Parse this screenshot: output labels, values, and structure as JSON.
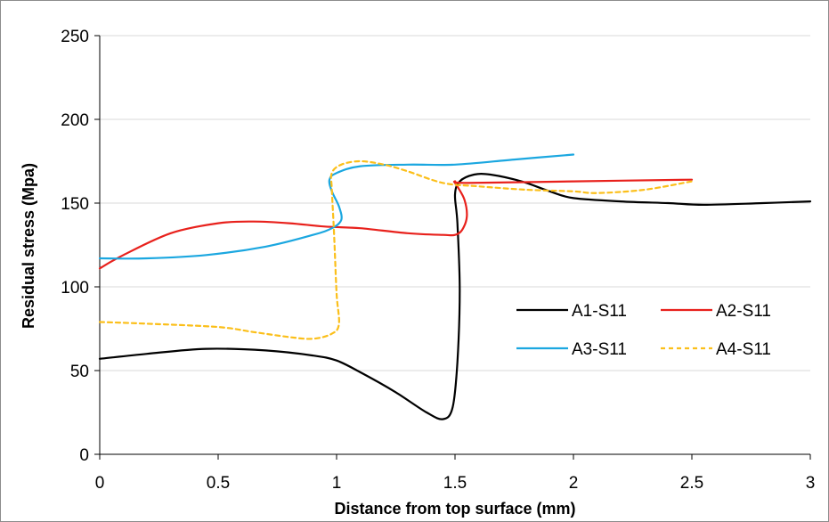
{
  "chart_data": {
    "type": "line",
    "xlabel": "Distance from top surface (mm)",
    "ylabel": "Residual stress (Mpa)",
    "xlim": [
      0,
      3
    ],
    "ylim": [
      0,
      250
    ],
    "x_ticks": [
      "0",
      "0.5",
      "1",
      "1.5",
      "2",
      "2.5",
      "3"
    ],
    "y_ticks": [
      "0",
      "50",
      "100",
      "150",
      "200",
      "250"
    ],
    "grid": "horizontal",
    "legend_position": "right",
    "series": [
      {
        "name": "A1-S11",
        "color": "#000000",
        "dash": "solid",
        "points": [
          [
            0,
            57
          ],
          [
            0.2,
            60
          ],
          [
            0.45,
            63
          ],
          [
            0.7,
            62
          ],
          [
            0.9,
            59
          ],
          [
            1.0,
            56
          ],
          [
            1.1,
            49
          ],
          [
            1.25,
            37
          ],
          [
            1.38,
            25
          ],
          [
            1.45,
            21
          ],
          [
            1.49,
            28
          ],
          [
            1.51,
            55
          ],
          [
            1.52,
            98
          ],
          [
            1.51,
            138
          ],
          [
            1.5,
            155
          ],
          [
            1.52,
            163
          ],
          [
            1.58,
            167
          ],
          [
            1.65,
            167
          ],
          [
            1.78,
            163
          ],
          [
            1.9,
            157
          ],
          [
            2.0,
            153
          ],
          [
            2.2,
            151
          ],
          [
            2.4,
            150
          ],
          [
            2.55,
            149
          ],
          [
            2.8,
            150
          ],
          [
            3.0,
            151
          ]
        ]
      },
      {
        "name": "A2-S11",
        "color": "#e8211c",
        "dash": "solid",
        "points": [
          [
            0,
            111
          ],
          [
            0.1,
            119
          ],
          [
            0.3,
            132
          ],
          [
            0.5,
            138
          ],
          [
            0.65,
            139
          ],
          [
            0.8,
            138
          ],
          [
            0.95,
            136
          ],
          [
            1.1,
            135
          ],
          [
            1.3,
            132
          ],
          [
            1.45,
            131
          ],
          [
            1.5,
            131
          ],
          [
            1.53,
            134
          ],
          [
            1.55,
            142
          ],
          [
            1.54,
            152
          ],
          [
            1.51,
            160
          ],
          [
            1.5,
            163
          ],
          [
            1.55,
            162
          ],
          [
            2.0,
            163
          ],
          [
            2.5,
            164
          ]
        ]
      },
      {
        "name": "A3-S11",
        "color": "#1ba7e0",
        "dash": "solid",
        "points": [
          [
            0,
            117
          ],
          [
            0.2,
            117
          ],
          [
            0.45,
            119
          ],
          [
            0.7,
            124
          ],
          [
            0.9,
            131
          ],
          [
            0.98,
            135
          ],
          [
            1.02,
            140
          ],
          [
            1.01,
            148
          ],
          [
            0.98,
            157
          ],
          [
            0.97,
            164
          ],
          [
            1.0,
            168
          ],
          [
            1.1,
            172
          ],
          [
            1.3,
            173
          ],
          [
            1.5,
            173
          ],
          [
            1.75,
            176
          ],
          [
            2.0,
            179
          ]
        ]
      },
      {
        "name": "A4-S11",
        "color": "#fbbf1a",
        "dash": "dashed",
        "points": [
          [
            0,
            79
          ],
          [
            0.2,
            78
          ],
          [
            0.5,
            76
          ],
          [
            0.65,
            73
          ],
          [
            0.8,
            70
          ],
          [
            0.9,
            69
          ],
          [
            0.98,
            72
          ],
          [
            1.01,
            78
          ],
          [
            1.0,
            96
          ],
          [
            0.99,
            130
          ],
          [
            0.98,
            158
          ],
          [
            0.98,
            168
          ],
          [
            1.02,
            173
          ],
          [
            1.1,
            175
          ],
          [
            1.2,
            173
          ],
          [
            1.3,
            169
          ],
          [
            1.45,
            162
          ],
          [
            1.6,
            160
          ],
          [
            1.8,
            158
          ],
          [
            2.0,
            157
          ],
          [
            2.1,
            156
          ],
          [
            2.3,
            158
          ],
          [
            2.5,
            163
          ]
        ]
      }
    ]
  }
}
